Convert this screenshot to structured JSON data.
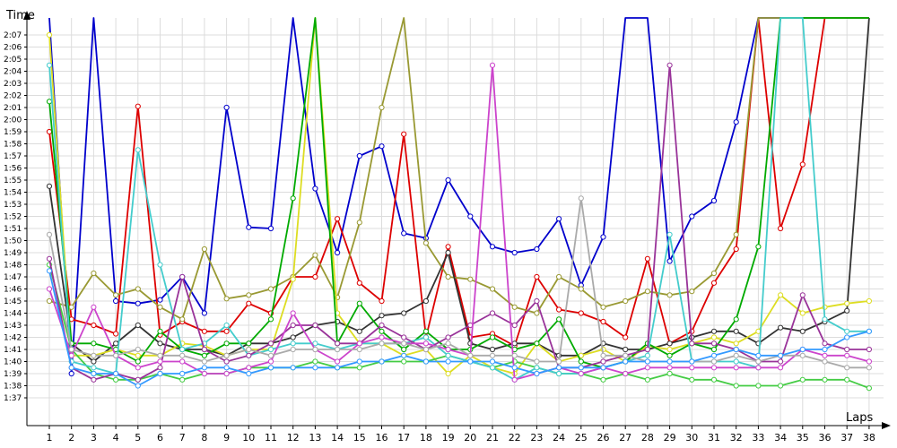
{
  "chart_data": {
    "type": "line",
    "title": "",
    "xlabel": "Laps",
    "ylabel": "Time",
    "xlim": [
      1,
      38
    ],
    "ylim_seconds": [
      96,
      129
    ],
    "grid": true,
    "legend": "none",
    "x": [
      1,
      2,
      3,
      4,
      5,
      6,
      7,
      8,
      9,
      10,
      11,
      12,
      13,
      14,
      15,
      16,
      17,
      18,
      19,
      20,
      21,
      22,
      23,
      24,
      25,
      26,
      27,
      28,
      29,
      30,
      31,
      32,
      33,
      34,
      35,
      36,
      37,
      38
    ],
    "y_tick_labels": [
      "1:37",
      "1:38",
      "1:39",
      "1:40",
      "1:41",
      "1:42",
      "1:43",
      "1:44",
      "1:45",
      "1:46",
      "1:47",
      "1:48",
      "1:49",
      "1:50",
      "1:51",
      "1:52",
      "1:53",
      "1:54",
      "1:55",
      "1:56",
      "1:57",
      "1:58",
      "1:59",
      "2:00",
      "2:01",
      "2:02",
      "2:03",
      "2:04",
      "2:05",
      "2:06",
      "2:07"
    ],
    "series": [
      {
        "color": "#0000cc",
        "values": [
          145.0,
          99.0,
          167.0,
          105.0,
          104.8,
          105.1,
          107.0,
          104.0,
          121.0,
          111.1,
          111.0,
          140.0,
          114.3,
          109.0,
          117.0,
          117.8,
          110.6,
          110.2,
          115.0,
          112.0,
          109.5,
          109.0,
          109.3,
          111.8,
          106.3,
          110.3,
          150.0,
          140.0,
          108.3,
          112.0,
          113.3,
          119.8,
          140.0,
          140.0,
          140.0,
          140.0,
          140.0,
          140.0
        ]
      },
      {
        "color": "#dd0000",
        "values": [
          119.0,
          103.5,
          103.0,
          102.3,
          121.1,
          102.2,
          103.3,
          102.5,
          102.5,
          104.8,
          104.0,
          107.0,
          107.0,
          111.8,
          106.5,
          105.0,
          118.8,
          102.0,
          109.5,
          102.0,
          102.3,
          101.3,
          107.0,
          104.3,
          104.0,
          103.3,
          102.0,
          108.5,
          101.5,
          102.5,
          106.5,
          109.3,
          140.0,
          111.0,
          116.3,
          140.0,
          140.0,
          140.0
        ]
      },
      {
        "color": "#999933",
        "values": [
          105.0,
          104.5,
          107.3,
          105.5,
          106.0,
          104.5,
          103.5,
          109.3,
          105.2,
          105.5,
          106.0,
          107.0,
          108.8,
          105.3,
          111.5,
          121.0,
          140.0,
          109.8,
          107.0,
          106.8,
          106.0,
          104.5,
          104.0,
          107.0,
          106.0,
          104.5,
          105.0,
          105.8,
          105.5,
          105.8,
          107.3,
          110.5,
          140.0,
          140.0,
          140.0,
          140.0,
          140.0,
          140.0
        ]
      },
      {
        "color": "#333333",
        "values": [
          114.5,
          101.5,
          100.0,
          101.5,
          103.0,
          101.5,
          101.0,
          101.0,
          100.5,
          101.5,
          101.5,
          102.0,
          103.0,
          103.3,
          102.5,
          103.8,
          104.0,
          105.0,
          109.0,
          101.5,
          101.0,
          101.5,
          101.5,
          100.5,
          100.5,
          101.5,
          101.0,
          101.0,
          101.5,
          102.0,
          102.5,
          102.5,
          101.5,
          102.8,
          102.5,
          103.3,
          104.2,
          140.0
        ]
      },
      {
        "color": "#dddd22",
        "values": [
          127.0,
          100.5,
          100.5,
          101.0,
          100.5,
          100.5,
          101.5,
          101.3,
          100.5,
          101.0,
          101.0,
          106.8,
          140.0,
          104.0,
          101.5,
          101.5,
          100.5,
          101.0,
          99.0,
          100.5,
          99.5,
          99.0,
          101.5,
          100.0,
          100.5,
          101.0,
          100.0,
          101.3,
          101.0,
          101.5,
          102.0,
          101.5,
          102.5,
          105.5,
          104.0,
          104.5,
          104.8,
          105.0
        ]
      },
      {
        "color": "#00aa00",
        "values": [
          121.5,
          101.5,
          101.5,
          101.0,
          100.0,
          102.5,
          101.0,
          100.5,
          101.5,
          101.5,
          103.5,
          113.5,
          140.0,
          101.5,
          104.8,
          102.5,
          101.0,
          102.5,
          101.0,
          101.0,
          102.0,
          101.0,
          101.5,
          103.5,
          100.0,
          99.5,
          100.0,
          101.5,
          100.5,
          101.5,
          101.0,
          103.5,
          109.5,
          140.0,
          140.0,
          140.0,
          140.0,
          140.0
        ]
      },
      {
        "color": "#44cc44",
        "values": [
          108.0,
          101.0,
          99.0,
          98.5,
          98.5,
          99.0,
          98.5,
          99.0,
          99.0,
          99.5,
          99.5,
          99.5,
          100.0,
          99.5,
          99.5,
          100.0,
          100.0,
          100.0,
          100.5,
          100.0,
          99.5,
          100.0,
          99.5,
          99.0,
          99.0,
          98.5,
          99.0,
          98.5,
          99.0,
          98.5,
          98.5,
          98.0,
          98.0,
          98.0,
          98.5,
          98.5,
          98.5,
          97.8
        ]
      },
      {
        "color": "#44cccc",
        "values": [
          124.5,
          100.0,
          99.5,
          99.0,
          117.5,
          108.0,
          101.0,
          101.5,
          103.0,
          100.5,
          101.0,
          101.5,
          101.5,
          101.0,
          101.5,
          101.5,
          101.5,
          102.0,
          100.5,
          100.0,
          99.5,
          98.5,
          99.5,
          99.0,
          99.0,
          99.5,
          100.0,
          100.5,
          110.5,
          100.0,
          100.0,
          100.0,
          99.5,
          140.0,
          140.0,
          103.5,
          102.5,
          102.5
        ]
      },
      {
        "color": "#993399",
        "values": [
          108.5,
          99.5,
          98.5,
          99.0,
          98.5,
          99.5,
          107.0,
          101.0,
          100.0,
          100.5,
          101.5,
          103.0,
          103.0,
          101.5,
          101.5,
          103.0,
          102.0,
          101.0,
          102.0,
          103.0,
          104.0,
          103.0,
          105.0,
          99.5,
          99.5,
          100.0,
          100.5,
          101.0,
          124.5,
          101.5,
          101.5,
          101.0,
          100.0,
          100.0,
          105.5,
          101.5,
          101.0,
          101.0
        ]
      },
      {
        "color": "#cc44cc",
        "values": [
          106.0,
          100.5,
          104.5,
          100.5,
          99.5,
          100.0,
          100.0,
          99.0,
          99.0,
          99.5,
          100.0,
          104.0,
          101.0,
          100.0,
          101.5,
          102.0,
          101.5,
          101.5,
          101.0,
          100.5,
          124.5,
          98.5,
          99.0,
          99.5,
          99.0,
          99.5,
          99.0,
          99.5,
          99.5,
          99.5,
          99.5,
          99.5,
          99.5,
          99.5,
          101.0,
          100.5,
          100.5,
          100.0
        ]
      },
      {
        "color": "#aaaaaa",
        "values": [
          110.5,
          101.0,
          100.5,
          100.5,
          101.0,
          100.5,
          100.5,
          100.0,
          100.5,
          101.0,
          100.5,
          101.0,
          101.0,
          101.0,
          101.0,
          101.5,
          101.5,
          101.0,
          101.5,
          100.5,
          100.5,
          100.5,
          100.0,
          100.0,
          113.5,
          100.5,
          100.5,
          100.0,
          100.0,
          100.0,
          100.0,
          100.5,
          100.0,
          100.5,
          100.5,
          100.0,
          99.5,
          99.5
        ]
      },
      {
        "color": "#3399ff",
        "values": [
          107.5,
          99.5,
          99.0,
          99.0,
          98.0,
          99.0,
          99.0,
          99.5,
          99.5,
          99.0,
          99.5,
          99.5,
          99.5,
          99.5,
          100.0,
          100.0,
          100.5,
          100.0,
          100.0,
          100.0,
          100.0,
          99.5,
          99.0,
          99.5,
          99.5,
          99.5,
          100.0,
          100.0,
          100.0,
          100.0,
          100.5,
          101.0,
          100.5,
          100.5,
          101.0,
          101.0,
          102.0,
          102.5
        ]
      }
    ]
  },
  "chart_aux": {
    "offscale_value": 140.0
  }
}
